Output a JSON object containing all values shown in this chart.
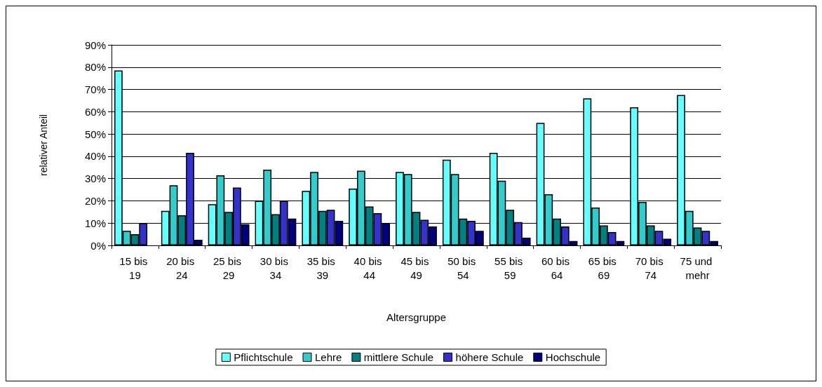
{
  "chart_data": {
    "type": "bar",
    "xlabel": "Altersgruppe",
    "ylabel": "relativer Anteil",
    "categories": [
      "15 bis 19",
      "20 bis 24",
      "25 bis 29",
      "30 bis 34",
      "35 bis 39",
      "40 bis 44",
      "45 bis 49",
      "50 bis 54",
      "55 bis 59",
      "60 bis 64",
      "65 bis 69",
      "70 bis 74",
      "75 und mehr"
    ],
    "series": [
      {
        "name": "Pflichtschule",
        "color": "#66ffff",
        "values": [
          78.5,
          15.5,
          18.5,
          20,
          24.5,
          25.5,
          33,
          38.5,
          41.5,
          55,
          66,
          62,
          67.5
        ]
      },
      {
        "name": "Lehre",
        "color": "#33cccc",
        "values": [
          6.5,
          27,
          31.5,
          34,
          33,
          33.5,
          32,
          32,
          29,
          23,
          17,
          19.5,
          15.5
        ]
      },
      {
        "name": "mittlere Schule",
        "color": "#008080",
        "values": [
          5,
          13.5,
          15,
          14,
          15.5,
          17.5,
          15,
          12,
          16,
          12,
          9,
          9,
          8
        ]
      },
      {
        "name": "höhere Schule",
        "color": "#3333cc",
        "values": [
          10,
          41.5,
          26,
          20,
          16,
          14.5,
          11.5,
          11,
          10.5,
          8.5,
          6,
          6.5,
          6.5
        ]
      },
      {
        "name": "Hochschule",
        "color": "#000080",
        "values": [
          null,
          2.5,
          9.5,
          12,
          11,
          10,
          8.5,
          6.5,
          3.5,
          2,
          2,
          3,
          2
        ]
      }
    ],
    "ylim": [
      0,
      90
    ],
    "yticks": [
      {
        "value": 0,
        "label": "0%"
      },
      {
        "value": 10,
        "label": "10%"
      },
      {
        "value": 20,
        "label": "20%"
      },
      {
        "value": 30,
        "label": "30%"
      },
      {
        "value": 40,
        "label": "40%"
      },
      {
        "value": 50,
        "label": "50%"
      },
      {
        "value": 60,
        "label": "60%"
      },
      {
        "value": 70,
        "label": "70%"
      },
      {
        "value": 80,
        "label": "80%"
      },
      {
        "value": 90,
        "label": "90%"
      }
    ],
    "grid": "y",
    "legend": "bottom"
  }
}
